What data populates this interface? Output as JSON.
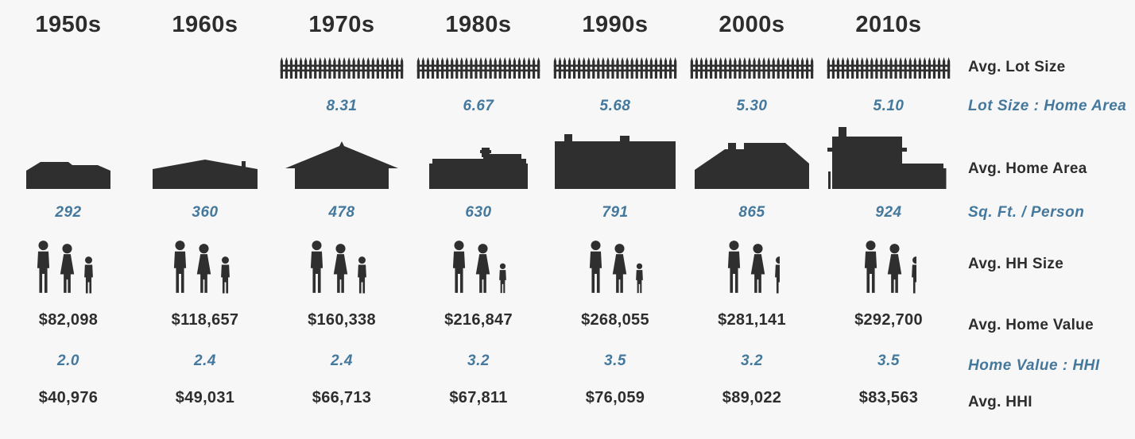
{
  "title": "Housing by decade infographic",
  "colors": {
    "background": "#f7f7f7",
    "dark_text": "#2d2d2d",
    "blue_text": "#44789c",
    "silhouette": "#2f2f2f"
  },
  "row_labels": {
    "lot_size": "Avg. Lot Size",
    "lot_ratio": "Lot Size : Home Area",
    "home_area": "Avg. Home Area",
    "sqft_person": "Sq. Ft. / Person",
    "hh_size": "Avg. HH Size",
    "home_value": "Avg. Home Value",
    "value_ratio": "Home Value : HHI",
    "hhi": "Avg. HHI"
  },
  "icons": {
    "fence": "picket-fence-icon",
    "house": "house-silhouette-icon",
    "family": "family-figures-icon"
  },
  "decades": [
    {
      "label": "1950s",
      "has_fence": false,
      "lot_ratio": "",
      "sqft_person": "292",
      "home_value": "$82,098",
      "value_hhi": "2.0",
      "hhi": "$40,976",
      "family": [
        "man",
        "woman",
        "child",
        "child-sliver"
      ]
    },
    {
      "label": "1960s",
      "has_fence": false,
      "lot_ratio": "",
      "sqft_person": "360",
      "home_value": "$118,657",
      "value_hhi": "2.4",
      "hhi": "$49,031",
      "family": [
        "man",
        "woman",
        "child",
        "child-sliver"
      ]
    },
    {
      "label": "1970s",
      "has_fence": true,
      "lot_ratio": "8.31",
      "sqft_person": "478",
      "home_value": "$160,338",
      "value_hhi": "2.4",
      "hhi": "$66,713",
      "family": [
        "man",
        "woman",
        "child",
        "child-sliver"
      ]
    },
    {
      "label": "1980s",
      "has_fence": true,
      "lot_ratio": "6.67",
      "sqft_person": "630",
      "home_value": "$216,847",
      "value_hhi": "3.2",
      "hhi": "$67,811",
      "family": [
        "man",
        "woman",
        "child-small"
      ]
    },
    {
      "label": "1990s",
      "has_fence": true,
      "lot_ratio": "5.68",
      "sqft_person": "791",
      "home_value": "$268,055",
      "value_hhi": "3.5",
      "hhi": "$76,059",
      "family": [
        "man",
        "woman",
        "child-small"
      ]
    },
    {
      "label": "2000s",
      "has_fence": true,
      "lot_ratio": "5.30",
      "sqft_person": "865",
      "home_value": "$281,141",
      "value_hhi": "3.2",
      "hhi": "$89,022",
      "family": [
        "man",
        "woman",
        "child-half"
      ]
    },
    {
      "label": "2010s",
      "has_fence": true,
      "lot_ratio": "5.10",
      "sqft_person": "924",
      "home_value": "$292,700",
      "value_hhi": "3.5",
      "hhi": "$83,563",
      "family": [
        "man",
        "woman",
        "child-half"
      ]
    }
  ],
  "chart_data": {
    "type": "table",
    "title": "Housing trends by decade",
    "categories": [
      "1950s",
      "1960s",
      "1970s",
      "1980s",
      "1990s",
      "2000s",
      "2010s"
    ],
    "series": [
      {
        "name": "Lot Size : Home Area",
        "values": [
          null,
          null,
          8.31,
          6.67,
          5.68,
          5.3,
          5.1
        ]
      },
      {
        "name": "Sq. Ft. / Person",
        "values": [
          292,
          360,
          478,
          630,
          791,
          865,
          924
        ]
      },
      {
        "name": "Avg. Home Value ($)",
        "values": [
          82098,
          118657,
          160338,
          216847,
          268055,
          281141,
          292700
        ]
      },
      {
        "name": "Home Value : HHI",
        "values": [
          2.0,
          2.4,
          2.4,
          3.2,
          3.5,
          3.2,
          3.5
        ]
      },
      {
        "name": "Avg. HHI ($)",
        "values": [
          40976,
          49031,
          66713,
          67811,
          76059,
          89022,
          83563
        ]
      }
    ],
    "legend_position": "right-row-labels",
    "grid": false
  }
}
